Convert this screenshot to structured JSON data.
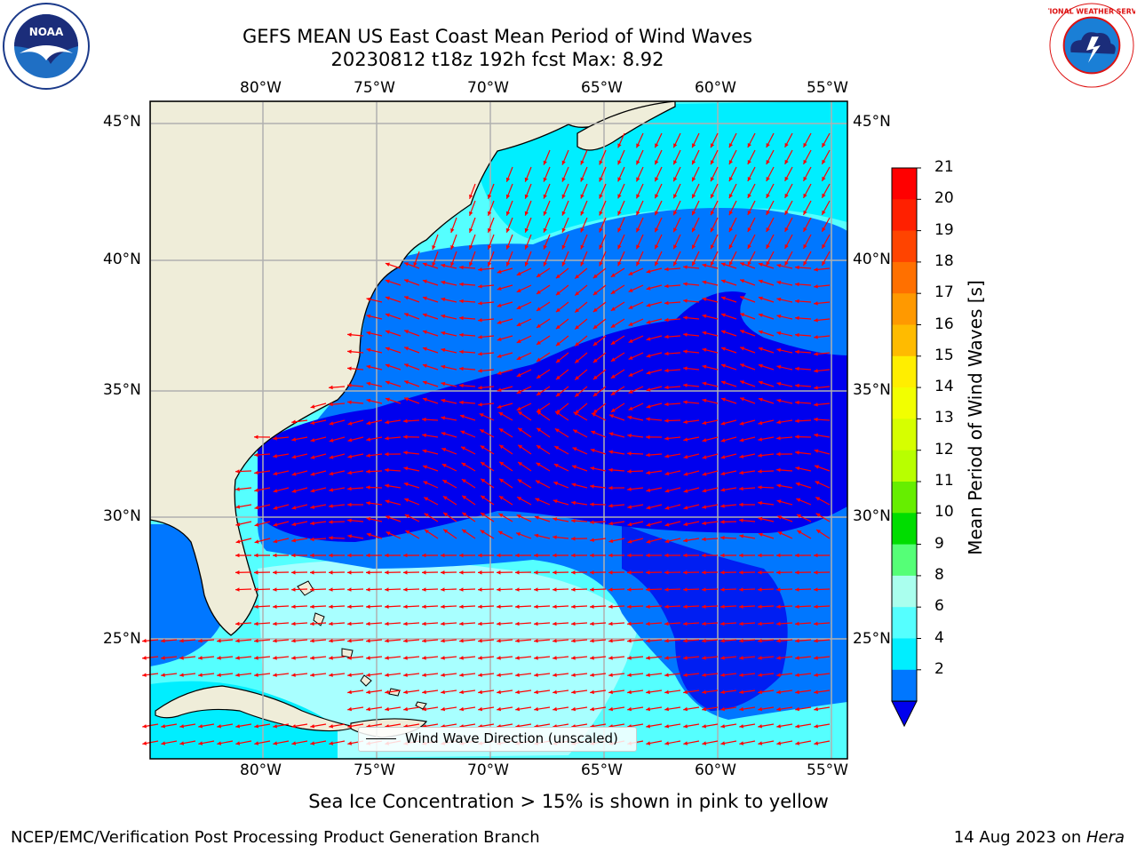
{
  "title": {
    "line1": "GEFS MEAN US East Coast Mean Period of Wind Waves",
    "line2": "20230812 t18z 192h fcst   Max: 8.92"
  },
  "logos": {
    "left": "NOAA",
    "right": "NATIONAL WEATHER SERVICE"
  },
  "map": {
    "lon_labels": [
      "80°W",
      "75°W",
      "70°W",
      "65°W",
      "60°W",
      "55°W"
    ],
    "lat_labels": [
      "45°N",
      "40°N",
      "35°N",
      "30°N",
      "25°N"
    ],
    "legend": "Wind Wave Direction (unscaled)",
    "colors": {
      "land": "#efedd9",
      "grid": "#b0b0b0",
      "arrow": "#ff0000"
    }
  },
  "colorbar": {
    "title": "Mean Period of Wind Waves [s]",
    "ticks": [
      "21",
      "20",
      "19",
      "18",
      "17",
      "16",
      "15",
      "14",
      "13",
      "12",
      "11",
      "10",
      "9",
      "8",
      "6",
      "4",
      "2"
    ],
    "colors": [
      "#ff0000",
      "#ff2000",
      "#ff4400",
      "#ff7000",
      "#ff9900",
      "#ffbb00",
      "#ffee00",
      "#f2ff00",
      "#d6ff00",
      "#b8ff00",
      "#66ee00",
      "#00dd00",
      "#55ff77",
      "#aaffee",
      "#55ffff",
      "#00eeff",
      "#0077ff"
    ],
    "under_color": "#0000ee"
  },
  "subtitle": "Sea Ice Concentration > 15% is shown in pink to yellow",
  "footer": {
    "left": "NCEP/EMC/Verification Post Processing Product Generation Branch",
    "date": "14 Aug 2023 on ",
    "machine": "Hera"
  }
}
